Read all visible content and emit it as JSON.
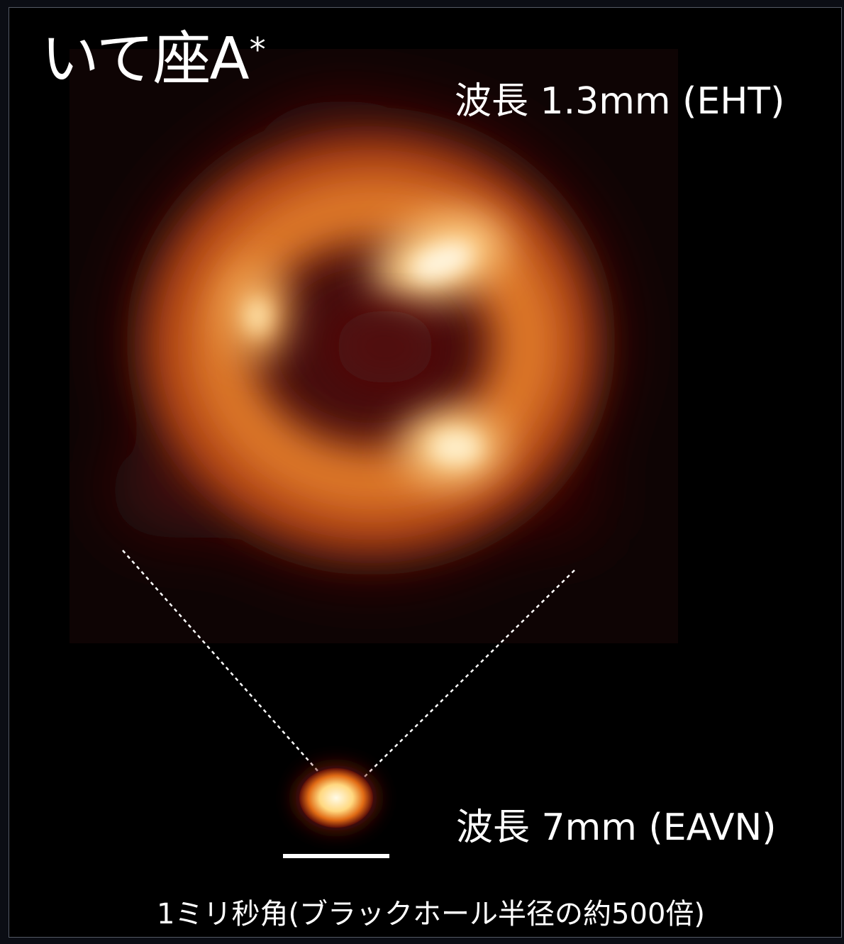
{
  "title": {
    "text": "いて座A",
    "superscript": "*"
  },
  "eht_label": "波長 1.3mm (EHT)",
  "eavn_label": "波長 7mm (EAVN)",
  "scale_caption": "1ミリ秒角(ブラックホール半径の約500倍)",
  "colors": {
    "background": "#000000",
    "glow_outer": "#4a0d0d",
    "ring_mid": "#c85a1c",
    "ring_bright": "#f09a40",
    "hotspot": "#fff6d8",
    "text": "#ffffff"
  }
}
